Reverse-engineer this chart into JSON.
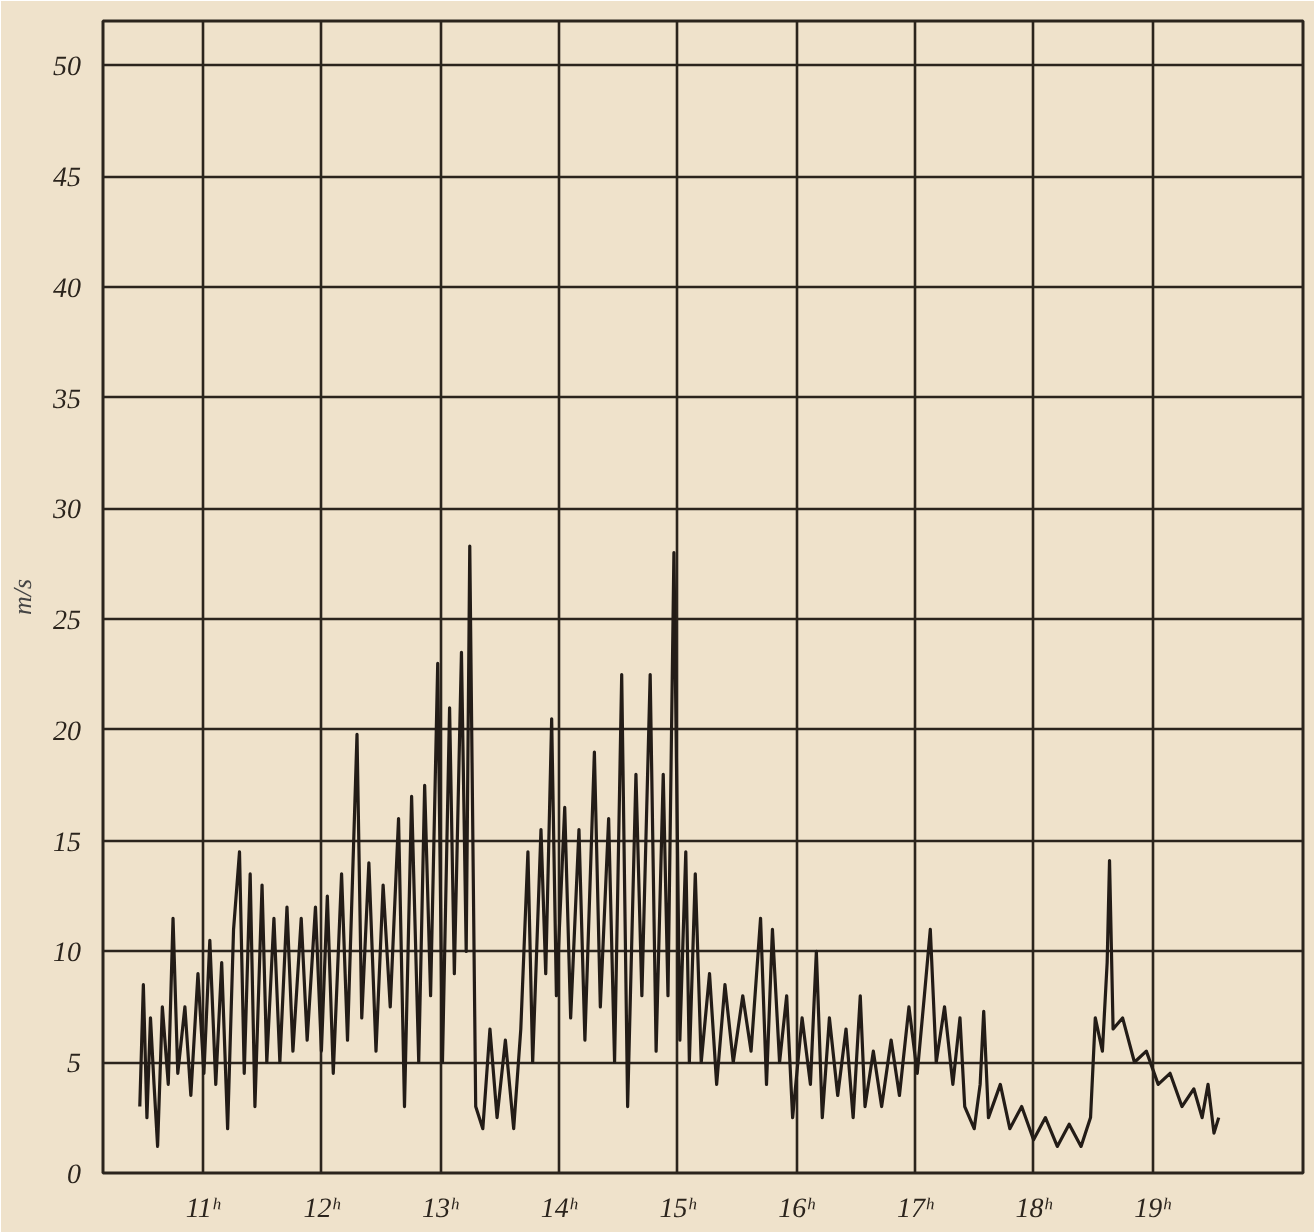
{
  "chart_data": {
    "type": "line",
    "ylabel": "m/s",
    "xlim": [
      10.16,
      20.27
    ],
    "ylim": [
      0,
      52
    ],
    "xticks": [
      {
        "value": 11,
        "label": "11ʰ"
      },
      {
        "value": 12,
        "label": "12ʰ"
      },
      {
        "value": 13,
        "label": "13ʰ"
      },
      {
        "value": 14,
        "label": "14ʰ"
      },
      {
        "value": 15,
        "label": "15ʰ"
      },
      {
        "value": 16,
        "label": "16ʰ"
      },
      {
        "value": 17,
        "label": "17ʰ"
      },
      {
        "value": 18,
        "label": "18ʰ"
      },
      {
        "value": 19,
        "label": "19ʰ"
      }
    ],
    "yticks": [
      0,
      5,
      10,
      15,
      20,
      25,
      30,
      35,
      40,
      45,
      50
    ],
    "grid": true,
    "series": [
      {
        "color": "#231c17",
        "line_style": "solid",
        "marker": "none",
        "x": [
          10.47,
          10.5,
          10.53,
          10.56,
          10.59,
          10.62,
          10.66,
          10.71,
          10.75,
          10.79,
          10.85,
          10.9,
          10.96,
          11.01,
          11.06,
          11.11,
          11.16,
          11.21,
          11.26,
          11.31,
          11.35,
          11.4,
          11.44,
          11.5,
          11.54,
          11.6,
          11.65,
          11.71,
          11.76,
          11.83,
          11.88,
          11.95,
          12.0,
          12.05,
          12.1,
          12.17,
          12.22,
          12.3,
          12.34,
          12.4,
          12.46,
          12.52,
          12.58,
          12.65,
          12.7,
          12.76,
          12.82,
          12.87,
          12.92,
          12.98,
          13.02,
          13.08,
          13.12,
          13.18,
          13.22,
          13.25,
          13.3,
          13.36,
          13.42,
          13.48,
          13.55,
          13.62,
          13.68,
          13.74,
          13.78,
          13.85,
          13.89,
          13.94,
          13.98,
          14.05,
          14.1,
          14.17,
          14.22,
          14.3,
          14.35,
          14.42,
          14.47,
          14.53,
          14.58,
          14.65,
          14.7,
          14.77,
          14.82,
          14.88,
          14.92,
          14.97,
          15.02,
          15.07,
          15.1,
          15.15,
          15.2,
          15.27,
          15.33,
          15.4,
          15.47,
          15.55,
          15.62,
          15.7,
          15.75,
          15.8,
          15.86,
          15.92,
          15.97,
          16.05,
          16.12,
          16.17,
          16.22,
          16.28,
          16.35,
          16.42,
          16.48,
          16.54,
          16.58,
          16.65,
          16.72,
          16.8,
          16.87,
          16.95,
          17.02,
          17.08,
          17.13,
          17.18,
          17.25,
          17.32,
          17.38,
          17.42,
          17.5,
          17.55,
          17.58,
          17.62,
          17.72,
          17.8,
          17.9,
          18.0,
          18.1,
          18.2,
          18.3,
          18.4,
          18.48,
          18.52,
          18.58,
          18.62,
          18.64,
          18.67,
          18.75,
          18.85,
          18.95,
          19.05,
          19.15,
          19.25,
          19.35,
          19.42,
          19.47,
          19.52,
          19.56
        ],
        "values": [
          3.0,
          8.5,
          2.5,
          7.0,
          4.0,
          1.2,
          7.5,
          4.0,
          11.5,
          4.5,
          7.5,
          3.5,
          9.0,
          4.5,
          10.5,
          4.0,
          9.5,
          2.0,
          11.0,
          14.5,
          4.5,
          13.5,
          3.0,
          13.0,
          5.0,
          11.5,
          5.0,
          12.0,
          5.5,
          11.5,
          6.0,
          12.0,
          5.5,
          12.5,
          4.5,
          13.5,
          6.0,
          19.8,
          7.0,
          14.0,
          5.5,
          13.0,
          7.5,
          16.0,
          3.0,
          17.0,
          5.0,
          17.5,
          8.0,
          23.0,
          5.0,
          21.0,
          9.0,
          23.5,
          10.0,
          28.3,
          3.0,
          2.0,
          6.5,
          2.5,
          6.0,
          2.0,
          6.5,
          14.5,
          5.0,
          15.5,
          9.0,
          20.5,
          8.0,
          16.5,
          7.0,
          15.5,
          6.0,
          19.0,
          7.5,
          16.0,
          5.0,
          22.5,
          3.0,
          18.0,
          8.0,
          22.5,
          5.5,
          18.0,
          8.0,
          28.0,
          6.0,
          14.5,
          5.0,
          13.5,
          5.0,
          9.0,
          4.0,
          8.5,
          5.0,
          8.0,
          5.5,
          11.5,
          4.0,
          11.0,
          5.0,
          8.0,
          2.5,
          7.0,
          4.0,
          10.0,
          2.5,
          7.0,
          3.5,
          6.5,
          2.5,
          8.0,
          3.0,
          5.5,
          3.0,
          6.0,
          3.5,
          7.5,
          4.5,
          8.0,
          11.0,
          5.0,
          7.5,
          4.0,
          7.0,
          3.0,
          2.0,
          4.0,
          7.3,
          2.5,
          4.0,
          2.0,
          3.0,
          1.5,
          2.5,
          1.2,
          2.2,
          1.2,
          2.5,
          7.0,
          5.5,
          9.5,
          14.1,
          6.5,
          7.0,
          5.0,
          5.5,
          4.0,
          4.5,
          3.0,
          3.8,
          2.5,
          4.0,
          1.8,
          2.5
        ]
      }
    ]
  }
}
